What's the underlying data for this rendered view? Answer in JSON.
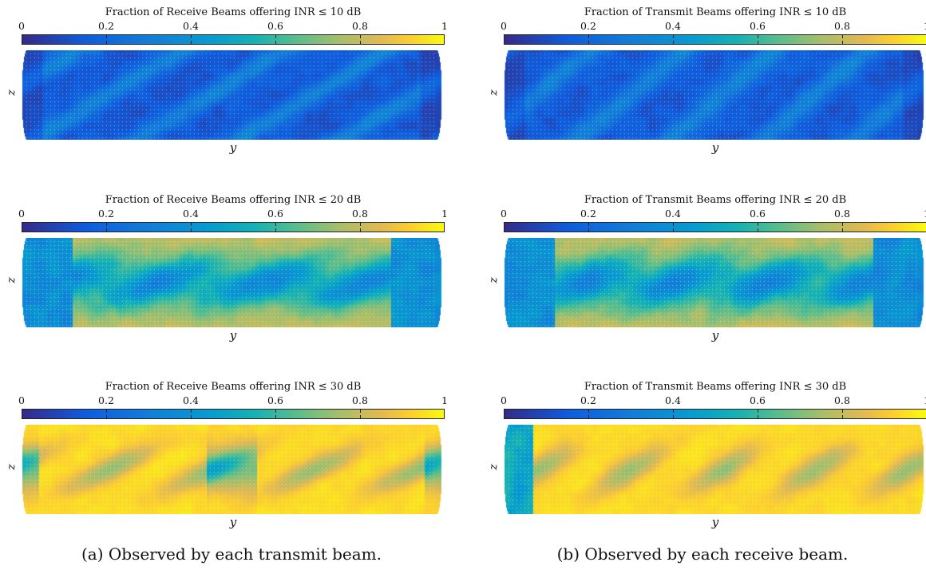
{
  "colorbar": {
    "ticks": [
      "0",
      "0.2",
      "0.4",
      "0.6",
      "0.8",
      "1"
    ],
    "tick_values": [
      0,
      0.2,
      0.4,
      0.6,
      0.8,
      1
    ],
    "colormap": "parula",
    "range": [
      0,
      1
    ]
  },
  "axes": {
    "xlabel": "y",
    "ylabel": "z"
  },
  "captions": {
    "left": "(a) Observed by each transmit beam.",
    "right": "(b) Observed by each receive beam."
  },
  "colors": {
    "low": "#352a87",
    "mid": "#21b1b1",
    "high": "#f9fb0e",
    "marker": "#ffffff"
  },
  "chart_data": [
    {
      "type": "heatmap",
      "title": "Fraction of Receive Beams offering INR ≤ 10 dB",
      "column": "a",
      "threshold_db": 10,
      "xlabel": "y",
      "ylabel": "z",
      "clim": [
        0,
        1
      ],
      "description_level": "mostly 0.05–0.3, peaks ~0.45"
    },
    {
      "type": "heatmap",
      "title": "Fraction of Receive Beams offering INR ≤ 20 dB",
      "column": "a",
      "threshold_db": 20,
      "xlabel": "y",
      "ylabel": "z",
      "clim": [
        0,
        1
      ],
      "description_level": "0.3–0.85 in banded pattern"
    },
    {
      "type": "heatmap",
      "title": "Fraction of Receive Beams offering INR ≤ 30 dB",
      "column": "a",
      "threshold_db": 30,
      "xlabel": "y",
      "ylabel": "z",
      "clim": [
        0,
        1
      ],
      "description_level": "mostly 0.85–1, dips to ~0.6"
    },
    {
      "type": "heatmap",
      "title": "Fraction of Transmit Beams offering INR ≤ 10 dB",
      "column": "b",
      "threshold_db": 10,
      "xlabel": "y",
      "ylabel": "z",
      "clim": [
        0,
        1
      ],
      "description_level": "mostly 0.05–0.3, peaks ~0.45"
    },
    {
      "type": "heatmap",
      "title": "Fraction of Transmit Beams offering INR ≤ 20 dB",
      "column": "b",
      "threshold_db": 20,
      "xlabel": "y",
      "ylabel": "z",
      "clim": [
        0,
        1
      ],
      "description_level": "0.3–0.85 in banded pattern"
    },
    {
      "type": "heatmap",
      "title": "Fraction of Transmit Beams offering INR ≤ 30 dB",
      "column": "b",
      "threshold_db": 30,
      "xlabel": "y",
      "ylabel": "z",
      "clim": [
        0,
        1
      ],
      "description_level": "mostly 0.85–1, dips to ~0.5"
    }
  ]
}
